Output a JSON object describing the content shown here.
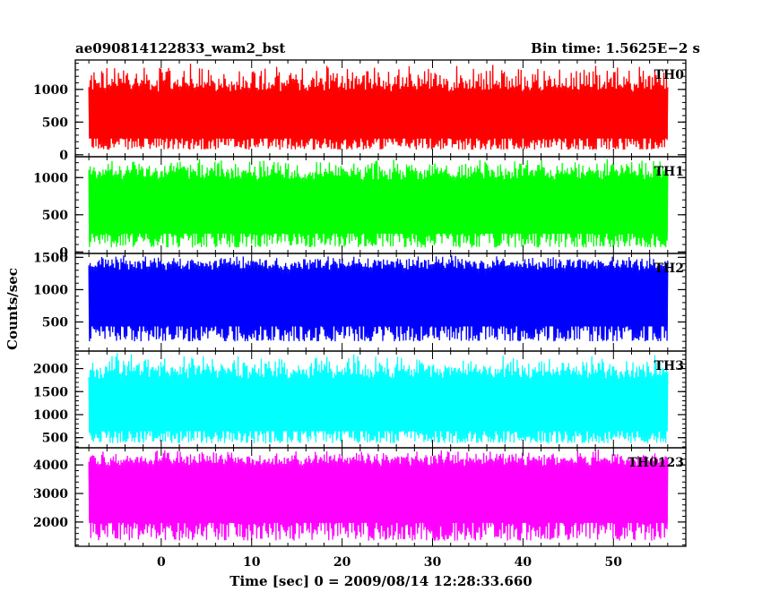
{
  "title_left": "ae090814122833_wam2_bst",
  "title_right": "Bin time: 1.5625E−2 s",
  "ylabel": "Counts/sec",
  "xlabel": "Time [sec] 0 = 2009/08/14 12:28:33.660",
  "chart_data": {
    "type": "line",
    "shared_x": {
      "label": "Time [sec] 0 = 2009/08/14 12:28:33.660",
      "range": [
        -9.5,
        58.0
      ],
      "ticks": [
        0,
        10,
        20,
        30,
        40,
        50
      ],
      "data_range": [
        -8.0,
        56.0
      ],
      "bin_time_s": 0.015625
    },
    "panels": [
      {
        "name": "TH0",
        "color": "#ff0000",
        "ylim": [
          -30,
          1450
        ],
        "yticks": [
          0,
          500,
          1000
        ],
        "stats": {
          "mean": 560,
          "spread_low": 80,
          "spread_high": 1100,
          "max": 1420
        }
      },
      {
        "name": "TH1",
        "color": "#00ff00",
        "ylim": [
          -20,
          1280
        ],
        "yticks": [
          0,
          500,
          1000
        ],
        "stats": {
          "mean": 590,
          "spread_low": 60,
          "spread_high": 1100,
          "max": 1270
        }
      },
      {
        "name": "TH2",
        "color": "#0000ff",
        "ylim": [
          50,
          1560
        ],
        "yticks": [
          500,
          1000,
          1500
        ],
        "stats": {
          "mean": 860,
          "spread_low": 200,
          "spread_high": 1450,
          "max": 1550
        }
      },
      {
        "name": "TH3",
        "color": "#00ffff",
        "ylim": [
          280,
          2380
        ],
        "yticks": [
          500,
          1000,
          1500,
          2000
        ],
        "stats": {
          "mean": 1120,
          "spread_low": 380,
          "spread_high": 2000,
          "max": 2350
        }
      },
      {
        "name": "TH0123",
        "color": "#ff00ff",
        "ylim": [
          1150,
          4600
        ],
        "yticks": [
          2000,
          3000,
          4000
        ],
        "stats": {
          "mean": 3120,
          "spread_low": 1350,
          "spread_high": 4250,
          "max": 4550
        }
      }
    ]
  }
}
